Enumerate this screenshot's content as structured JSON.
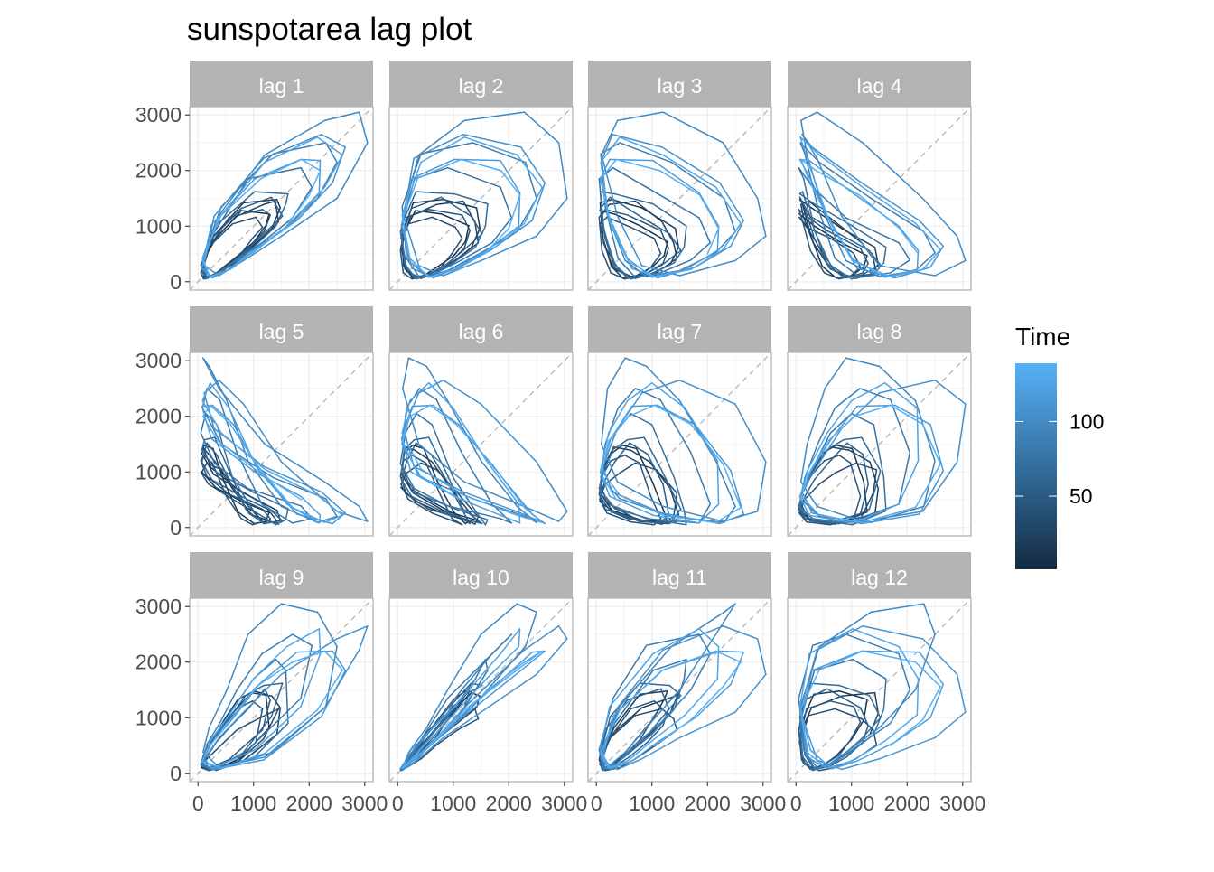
{
  "chart_data": {
    "type": "line",
    "title": "sunspotarea lag plot",
    "xlabel": "",
    "ylabel": "",
    "xlim": [
      -150,
      3150
    ],
    "ylim": [
      -150,
      3150
    ],
    "x_ticks": [
      0,
      1000,
      2000,
      3000
    ],
    "y_ticks": [
      0,
      1000,
      2000,
      3000
    ],
    "grid": true,
    "reference_line": "y = x (dashed grey)",
    "facets": [
      "lag 1",
      "lag 2",
      "lag 3",
      "lag 4",
      "lag 5",
      "lag 6",
      "lag 7",
      "lag 8",
      "lag 9",
      "lag 10",
      "lag 11",
      "lag 12"
    ],
    "facet_layout": {
      "rows": 3,
      "cols": 4
    },
    "legend": {
      "title": "Time",
      "position": "right",
      "ticks": [
        50,
        100
      ],
      "range": [
        1,
        139
      ],
      "color_low": "#132B43",
      "color_high": "#56B1F7"
    },
    "series_source": "annual sunspot area, lagged pairs (y_t, y_(t-k)) per facet; path colored by Time",
    "series": [
      {
        "name": "sunspotarea",
        "time": [
          1,
          2,
          3,
          4,
          5,
          6,
          7,
          8,
          9,
          10,
          11,
          12,
          13,
          14,
          15,
          16,
          17,
          18,
          19,
          20,
          21,
          22,
          23,
          24,
          25,
          26,
          27,
          28,
          29,
          30,
          31,
          32,
          33,
          34,
          35,
          36,
          37,
          38,
          39,
          40,
          41,
          42,
          43,
          44,
          45,
          46,
          47,
          48,
          49,
          50,
          51,
          52,
          53,
          54,
          55,
          56,
          57,
          58,
          59,
          60,
          61,
          62,
          63,
          64,
          65,
          66,
          67,
          68,
          69,
          70,
          71,
          72,
          73,
          74,
          75,
          76,
          77,
          78,
          79,
          80,
          81,
          82,
          83,
          84,
          85,
          86,
          87,
          88,
          89,
          90,
          91,
          92,
          93,
          94,
          95,
          96,
          97,
          98,
          99,
          100,
          101,
          102,
          103,
          104,
          105,
          106,
          107,
          108,
          109,
          110,
          111,
          112,
          113,
          114,
          115,
          116,
          117,
          118,
          119,
          120,
          121,
          122,
          123,
          124,
          125,
          126,
          127,
          128,
          129,
          130,
          131,
          132,
          133,
          134,
          135,
          136,
          137,
          138,
          139
        ],
        "values": [
          60,
          320,
          780,
          1280,
          1220,
          1010,
          720,
          470,
          270,
          110,
          70,
          280,
          820,
          1420,
          1480,
          1330,
          960,
          620,
          310,
          130,
          90,
          230,
          700,
          1180,
          1390,
          1450,
          1080,
          700,
          420,
          160,
          60,
          190,
          620,
          1040,
          1160,
          980,
          780,
          510,
          260,
          100,
          50,
          160,
          560,
          1160,
          1300,
          1200,
          920,
          600,
          330,
          160,
          70,
          250,
          780,
          1320,
          1520,
          1180,
          860,
          560,
          300,
          120,
          70,
          330,
          1020,
          1620,
          1580,
          1400,
          1000,
          620,
          340,
          140,
          50,
          300,
          900,
          1850,
          2050,
          1700,
          1150,
          700,
          390,
          160,
          80,
          420,
          1350,
          2300,
          2500,
          2150,
          1500,
          900,
          520,
          200,
          90,
          380,
          1200,
          2280,
          2900,
          3050,
          2500,
          1500,
          820,
          380,
          110,
          290,
          1180,
          2220,
          2650,
          2420,
          1780,
          1100,
          640,
          260,
          70,
          240,
          1020,
          1850,
          2200,
          2180,
          1600,
          1000,
          560,
          220,
          80,
          420,
          1200,
          2150,
          2600,
          2280,
          1700,
          1050,
          580,
          220,
          90,
          360,
          1140,
          1860,
          2200,
          2000,
          1560,
          960,
          500
        ]
      }
    ]
  }
}
